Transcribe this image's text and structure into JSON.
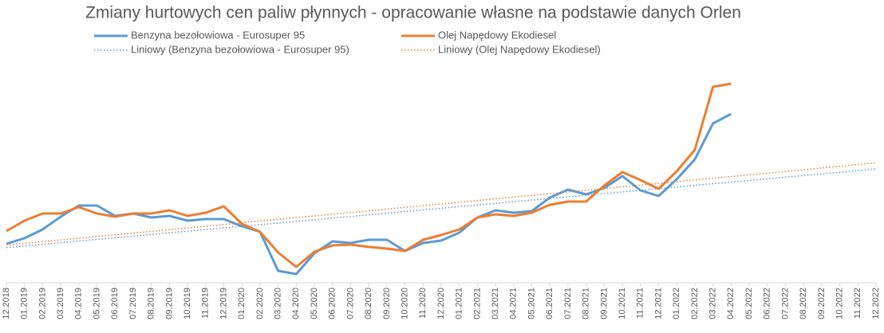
{
  "chart_data": {
    "type": "line",
    "title": "Zmiany hurtowych cen paliw płynnych - opracowanie własne na podstawie danych Orlen",
    "categories": [
      "12.2018",
      "01.2019",
      "02.2019",
      "03.2019",
      "04.2019",
      "05.2019",
      "06.2019",
      "07.2019",
      "08.2019",
      "09.2019",
      "10.2019",
      "11.2019",
      "12.2019",
      "01.2020",
      "02.2020",
      "03.2020",
      "04.2020",
      "05.2020",
      "06.2020",
      "07.2020",
      "08.2020",
      "09.2020",
      "10.2020",
      "11.2020",
      "12.2020",
      "01.2021",
      "02.2021",
      "03.2021",
      "04.2021",
      "05.2021",
      "06.2021",
      "07.2021",
      "08.2021",
      "09.2021",
      "10.2021",
      "11.2021",
      "12.2021",
      "01.2022",
      "02.2022",
      "03.2022",
      "04.2022",
      "05.2022",
      "06.2022",
      "07.2022",
      "08.2022",
      "09.2022",
      "10.2022",
      "11.2022",
      "12.2022"
    ],
    "ylim": [
      0,
      280
    ],
    "series": [
      {
        "name": "Benzyna bezołowiowa - Eurosuper 95",
        "color": "#5b9bd5",
        "trendline": {
          "name": "Liniowy (Benzyna bezołowiowa - Eurosuper 95)"
        },
        "values": [
          49,
          56,
          67,
          83,
          97,
          97,
          84,
          87,
          82,
          84,
          78,
          80,
          80,
          71,
          64,
          15,
          11,
          37,
          52,
          50,
          54,
          54,
          40,
          50,
          53,
          63,
          82,
          91,
          88,
          90,
          107,
          117,
          111,
          119,
          134,
          116,
          109,
          130,
          155,
          200,
          212,
          null,
          null,
          null,
          null,
          null,
          null,
          null,
          null
        ]
      },
      {
        "name": "Olej Napędowy Ekodiesel",
        "color": "#ed7d31",
        "trendline": {
          "name": "Liniowy (Olej Napędowy Ekodiesel)"
        },
        "values": [
          65,
          78,
          87,
          87,
          95,
          87,
          83,
          87,
          87,
          91,
          84,
          88,
          96,
          74,
          64,
          38,
          20,
          39,
          47,
          48,
          45,
          43,
          40,
          54,
          60,
          67,
          82,
          86,
          84,
          88,
          98,
          102,
          102,
          122,
          139,
          129,
          118,
          140,
          167,
          246,
          250,
          null,
          null,
          null,
          null,
          null,
          null,
          null,
          null
        ]
      }
    ]
  }
}
